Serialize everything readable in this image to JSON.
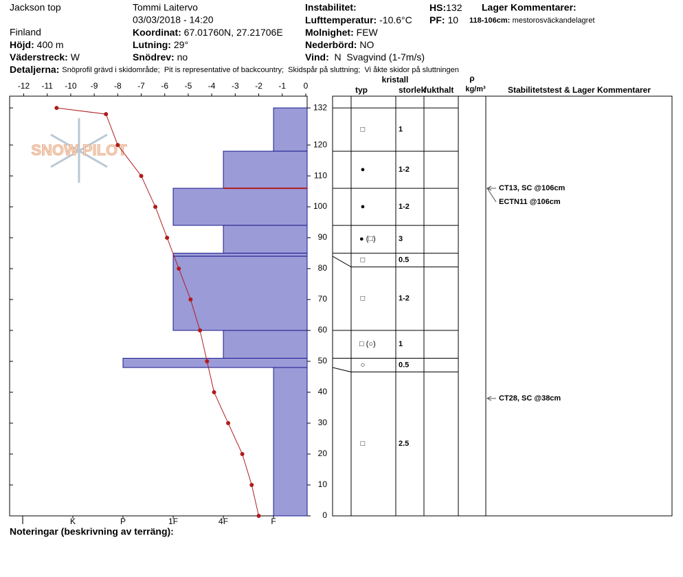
{
  "header": {
    "location": "Jackson top",
    "country": "Finland",
    "observer": "Tommi Laitervo",
    "datetime": "03/03/2018 - 14:20",
    "elevation": {
      "label": "Höjd:",
      "value": "400 m"
    },
    "aspect": {
      "label": "Väderstreck:",
      "value": "W"
    },
    "coordinates": {
      "label": "Koordinat:",
      "value": "67.01760N, 27.21706E"
    },
    "slope": {
      "label": "Lutning:",
      "value": "29°"
    },
    "wind_loading": {
      "label": "Snödrev:",
      "value": "no"
    },
    "instability": {
      "label": "Instabilitet:"
    },
    "air_temperature": {
      "label": "Lufttemperatur:",
      "value": "-10.6°C"
    },
    "sky": {
      "label": "Molnighet:",
      "value": "FEW"
    },
    "precipitation": {
      "label": "Nederbörd:",
      "value": "NO"
    },
    "wind": {
      "label": "Vind:",
      "value": "N  Svagvind (1-7m/s)"
    },
    "hs": {
      "label": "HS:",
      "value": "132"
    },
    "pf": {
      "label": "PF:",
      "value": "10"
    },
    "layer_comments": {
      "label": "Lager Kommentarer:",
      "range": "118-106cm:",
      "text": "mestorosväckandelagret"
    },
    "details": {
      "label": "Detaljerna:",
      "text": "Snöprofil grävd i skidområde;  Pit is representative of backcountry;  Skidspår på sluttning;  Vi åkte skidor på sluttningen"
    }
  },
  "chart_data": {
    "type": "snow-profile",
    "logo": "SNOW PILOT",
    "xlim": [
      -12.6,
      0.06
    ],
    "xticks": [
      -12,
      -11,
      -10,
      -9,
      -8,
      -7,
      -6,
      -5,
      -4,
      -3,
      -2,
      -1,
      0
    ],
    "ylim": [
      0,
      135.8
    ],
    "yticks": [
      0,
      10,
      20,
      30,
      40,
      50,
      60,
      70,
      80,
      90,
      100,
      110,
      120,
      132
    ],
    "hardness_lim": [
      6.26,
      0.33
    ],
    "hardness_ticks": [
      {
        "value": 6,
        "label": "I"
      },
      {
        "value": 5,
        "label": "K"
      },
      {
        "value": 4,
        "label": "P"
      },
      {
        "value": 3,
        "label": "1F"
      },
      {
        "value": 2,
        "label": "4F"
      },
      {
        "value": 1,
        "label": "F"
      }
    ],
    "layer_color": "#9b9bd8",
    "layers": [
      {
        "top": 132,
        "bottom": 118,
        "hardness": 1,
        "grain": "□",
        "size": "1"
      },
      {
        "top": 118,
        "bottom": 106,
        "hardness": 2,
        "grain": "●",
        "size": "1-2"
      },
      {
        "top": 106,
        "bottom": 94,
        "hardness": 3,
        "grain": "●",
        "size": "1-2"
      },
      {
        "top": 94,
        "bottom": 85,
        "hardness": 2,
        "grain": "● (□)",
        "size": "3"
      },
      {
        "top": 85,
        "bottom": 84,
        "hardness": 3,
        "grain": "□",
        "size": "0.5"
      },
      {
        "top": 84,
        "bottom": 60,
        "hardness": 3,
        "grain": "□",
        "size": "1-2"
      },
      {
        "top": 60,
        "bottom": 51,
        "hardness": 2,
        "grain": "□ (○)",
        "size": "1"
      },
      {
        "top": 51,
        "bottom": 48,
        "hardness": 4,
        "grain": "○",
        "size": "0.5"
      },
      {
        "top": 48,
        "bottom": 0,
        "hardness": 1,
        "grain": "□",
        "size": "2.5"
      }
    ],
    "critical_layer": {
      "depth": 106,
      "color": "#b01c1c"
    },
    "temperature": {
      "color": "#b01c1c",
      "depths": [
        132,
        130,
        120,
        110,
        100,
        90,
        80,
        70,
        60,
        50,
        40,
        30,
        20,
        10,
        0
      ],
      "values": [
        -10.6,
        -8.5,
        -8.0,
        -7.0,
        -6.4,
        -5.9,
        -5.4,
        -4.9,
        -4.5,
        -4.2,
        -3.9,
        -3.3,
        -2.7,
        -2.3,
        -2.0
      ]
    },
    "table_headers": {
      "type": "typ",
      "crystal": "kristall",
      "size": "storlek",
      "moisture": "fukthalt",
      "density_symbol": "ρ",
      "density_unit": "kg/m³",
      "comments": "Stabilitetstest & Lager Kommentarer"
    },
    "tests": [
      {
        "label": "CT13, SC @106cm",
        "depth": 106
      },
      {
        "label": "ECTN11 @106cm",
        "depth": 106
      },
      {
        "label": "CT28, SC @38cm",
        "depth": 38
      }
    ]
  },
  "notes_label": "Noteringar (beskrivning av terräng):"
}
